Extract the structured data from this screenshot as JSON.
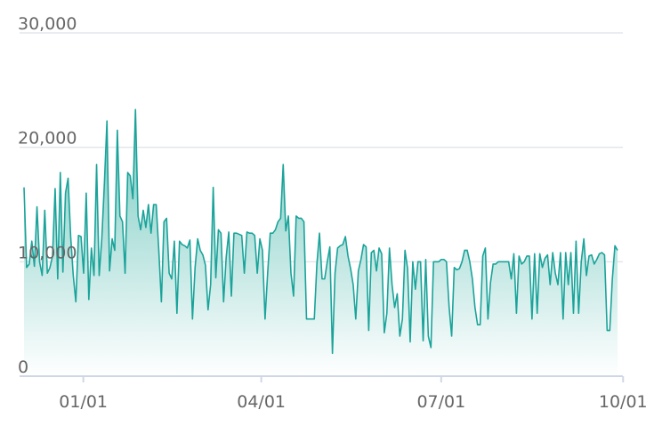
{
  "chart_data": {
    "type": "area",
    "x_start_date": "2017-12-02",
    "y_ticks": [
      "0",
      "10,000",
      "20,000",
      "30,000"
    ],
    "y_tick_values": [
      0,
      10000,
      20000,
      30000
    ],
    "x_ticks": [
      "01/01",
      "04/01",
      "07/01",
      "10/01"
    ],
    "x_tick_dates": [
      "2018-01-01",
      "2018-04-01",
      "2018-07-01",
      "2018-10-01"
    ],
    "ylim": [
      0,
      30000
    ],
    "xlim": [
      "2017-12-02",
      "2018-10-06"
    ],
    "colors": {
      "line": "#1aa39a",
      "fill_top": "#6ec6bd",
      "fill_bottom": "#ffffff",
      "grid": "#e3e6ea",
      "tick_text": "#666666"
    },
    "series": [
      {
        "values": [
          16500,
          9500,
          9800,
          11800,
          9600,
          14800,
          10000,
          8800,
          14500,
          9000,
          9500,
          10500,
          16400,
          8500,
          17800,
          9100,
          16000,
          17300,
          12200,
          8800,
          6500,
          12300,
          12200,
          9000,
          16000,
          6700,
          11200,
          8800,
          18500,
          8800,
          12000,
          16800,
          22300,
          9200,
          12000,
          11000,
          21500,
          14000,
          13500,
          9000,
          17800,
          17500,
          15500,
          23300,
          14000,
          12800,
          14500,
          13000,
          15000,
          12500,
          15000,
          15000,
          11000,
          6500,
          13500,
          13800,
          9000,
          8500,
          11800,
          5500,
          11800,
          11500,
          11400,
          11200,
          11900,
          5000,
          9500,
          12000,
          11000,
          10600,
          9700,
          5800,
          8000,
          16500,
          8600,
          12800,
          12500,
          6500,
          10400,
          12600,
          7000,
          12500,
          12500,
          12400,
          12300,
          9000,
          12600,
          12500,
          12500,
          12300,
          9000,
          12000,
          11000,
          5000,
          9000,
          12500,
          12500,
          12800,
          13500,
          13800,
          18500,
          12700,
          14000,
          9000,
          7000,
          14000,
          13800,
          13800,
          13500,
          5000,
          5000,
          5000,
          5000,
          9800,
          12500,
          8500,
          8500,
          10000,
          11300,
          2000,
          9000,
          11200,
          11400,
          11500,
          12200,
          10500,
          9400,
          8000,
          5000,
          9200,
          10200,
          11500,
          11300,
          4000,
          10800,
          11000,
          9200,
          11200,
          10700,
          3800,
          5500,
          11200,
          8000,
          6000,
          7200,
          3500,
          5000,
          11000,
          9400,
          3000,
          10000,
          7600,
          10000,
          10000,
          3100,
          10200,
          3500,
          2500,
          10000,
          10000,
          10000,
          10200,
          10200,
          10000,
          6100,
          3500,
          9500,
          9300,
          9400,
          10000,
          11000,
          11000,
          10000,
          8500,
          6000,
          4500,
          4500,
          10500,
          11200,
          5000,
          8200,
          9800,
          9800,
          10000,
          10000,
          10000,
          10000,
          10000,
          8500,
          10700,
          5500,
          10500,
          9800,
          10000,
          10500,
          10500,
          5000,
          10700,
          5500,
          10700,
          9500,
          10300,
          10600,
          8000,
          10800,
          9000,
          8000,
          10800,
          5000,
          10800,
          8000,
          10800,
          5500,
          11800,
          5500,
          10000,
          12000,
          8800,
          10500,
          10600,
          9800,
          10200,
          10700,
          10800,
          10600,
          4000,
          4000,
          8500,
          11400,
          11000
        ],
        "color": "#1aa39a"
      }
    ]
  }
}
